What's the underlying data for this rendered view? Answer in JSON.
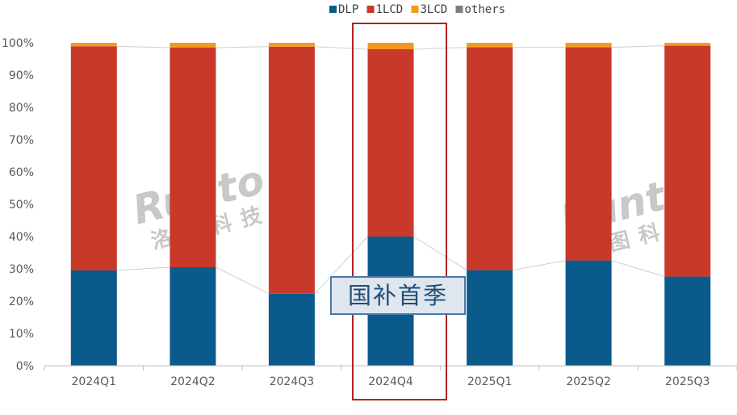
{
  "chart_data": {
    "type": "bar",
    "stacked": true,
    "categories": [
      "2024Q1",
      "2024Q2",
      "2024Q3",
      "2024Q4",
      "2025Q1",
      "2025Q2",
      "2025Q3"
    ],
    "series": [
      {
        "name": "DLP",
        "color": "#0b5a8c",
        "values": [
          29.5,
          30.5,
          22.3,
          40.0,
          29.6,
          32.6,
          27.6
        ]
      },
      {
        "name": "1LCD",
        "color": "#c8392a",
        "values": [
          69.4,
          68.0,
          76.5,
          58.0,
          69.0,
          66.0,
          71.5
        ]
      },
      {
        "name": "3LCD",
        "color": "#f29a1f",
        "values": [
          1.1,
          1.5,
          1.2,
          2.0,
          1.4,
          1.4,
          0.9
        ]
      },
      {
        "name": "others",
        "color": "#7f7f7f",
        "values": [
          0.0,
          0.0,
          0.0,
          0.0,
          0.0,
          0.0,
          0.0
        ]
      }
    ],
    "ylim": [
      0,
      100
    ],
    "yticks": [
      "0%",
      "10%",
      "20%",
      "30%",
      "40%",
      "50%",
      "60%",
      "70%",
      "80%",
      "90%",
      "100%"
    ],
    "legend_position": "top-center",
    "grid": false,
    "annotation": "国补首季",
    "highlighted_category": "2024Q4"
  },
  "watermark": {
    "brand": "Runto",
    "chinese": "洛图科技"
  }
}
